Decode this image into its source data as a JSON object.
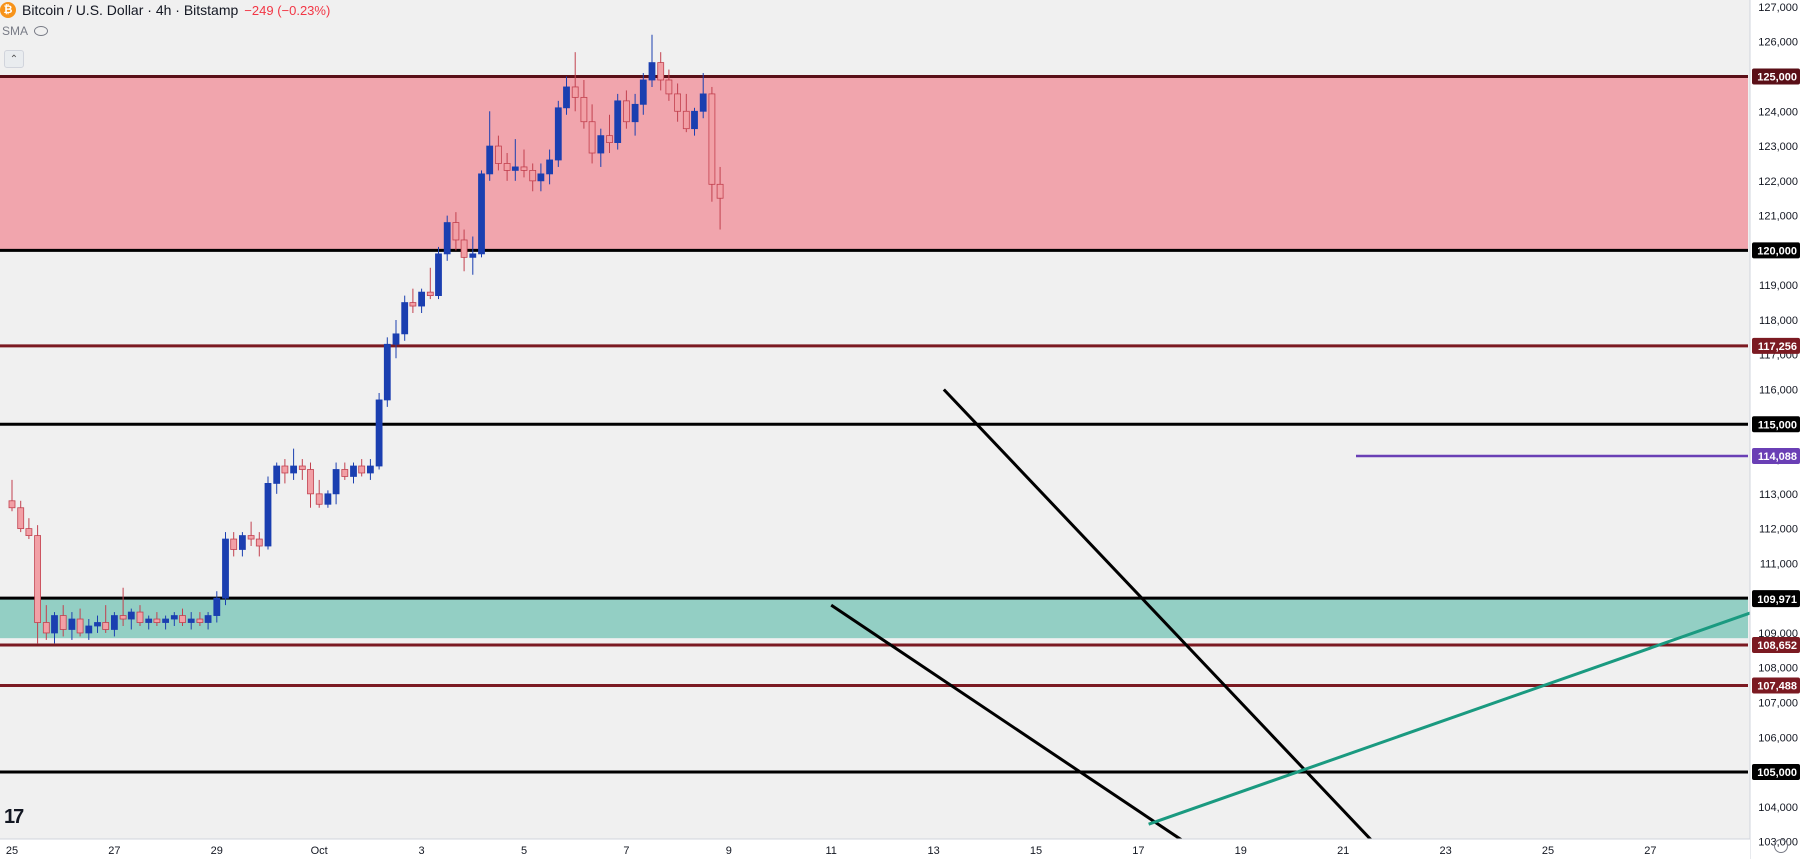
{
  "header": {
    "symbol": "Bitcoin / U.S. Dollar · 4h · Bitstamp",
    "change": "−249 (−0.23%)",
    "coin_glyph": "₿",
    "indicator": "SMA"
  },
  "colors": {
    "up": "#1b3fb0",
    "down": "#f2a0a6",
    "down_border": "#c2414f",
    "resistance_zone": "#f1a5ad",
    "support_zone": "#93cfc4",
    "key_level": "#000000",
    "minor_level": "#7b1a22",
    "pivot_line": "#6a3fb5",
    "trendline": "#1a9a80"
  },
  "chart_data": {
    "type": "candlestick",
    "title": "Bitcoin / U.S. Dollar · 4h · Bitstamp",
    "xlabel": "",
    "ylabel": "",
    "ylim": [
      102500,
      127200
    ],
    "y_ticks": [
      103000,
      104000,
      105000,
      106000,
      107000,
      108000,
      109000,
      110000,
      111000,
      112000,
      113000,
      114000,
      115000,
      116000,
      117000,
      118000,
      119000,
      120000,
      121000,
      122000,
      123000,
      124000,
      125000,
      126000,
      127000
    ],
    "x_ticks": [
      {
        "label": "25",
        "day": 25
      },
      {
        "label": "27",
        "day": 27
      },
      {
        "label": "29",
        "day": 29
      },
      {
        "label": "Oct",
        "day": 31
      },
      {
        "label": "3",
        "day": 33
      },
      {
        "label": "5",
        "day": 35
      },
      {
        "label": "7",
        "day": 37
      },
      {
        "label": "9",
        "day": 39
      },
      {
        "label": "11",
        "day": 41
      },
      {
        "label": "13",
        "day": 43
      },
      {
        "label": "15",
        "day": 45
      },
      {
        "label": "17",
        "day": 47
      },
      {
        "label": "19",
        "day": 49
      },
      {
        "label": "21",
        "day": 51
      },
      {
        "label": "23",
        "day": 53
      },
      {
        "label": "25",
        "day": 55
      },
      {
        "label": "27",
        "day": 57
      }
    ],
    "grid": false,
    "zones": [
      {
        "from": 120000,
        "to": 125000,
        "color": "#f1a5ad"
      },
      {
        "from": 108850,
        "to": 110000,
        "color": "#93cfc4"
      }
    ],
    "levels": [
      {
        "price": 125000,
        "label": "125,000",
        "color": "#5a0f17"
      },
      {
        "price": 120000,
        "label": "120,000",
        "color": "#000000"
      },
      {
        "price": 117256,
        "label": "117,256",
        "color": "#7b1a22"
      },
      {
        "price": 115000,
        "label": "115,000",
        "color": "#000000"
      },
      {
        "price": 110000,
        "label": "110,000",
        "color": "#000000"
      },
      {
        "price": 108652,
        "label": "108,652",
        "color": "#7b1a22"
      },
      {
        "price": 107488,
        "label": "107,488",
        "color": "#7b1a22"
      },
      {
        "price": 105000,
        "label": "105,000",
        "color": "#000000"
      }
    ],
    "pivot": {
      "price": 114088,
      "label": "114,088",
      "from_day": 51.25
    },
    "current_price": {
      "price": 109971,
      "label": "109,971"
    },
    "trendlines": [
      {
        "from": [
          41.0,
          109800
        ],
        "to": [
          48.4,
          102500
        ],
        "color": "#000000"
      },
      {
        "from": [
          43.2,
          116000
        ],
        "to": [
          51.9,
          102500
        ],
        "color": "#000000"
      },
      {
        "from": [
          47.2,
          103500
        ],
        "to": [
          59.0,
          109600
        ],
        "color": "#1a9a80"
      }
    ],
    "series": [
      {
        "name": "BTCUSD",
        "ohlc": [
          [
            25.0,
            112800,
            113400,
            112500,
            112600
          ],
          [
            25.17,
            112600,
            112800,
            111900,
            112000
          ],
          [
            25.33,
            112000,
            112300,
            111700,
            111800
          ],
          [
            25.5,
            111800,
            112100,
            108700,
            109300
          ],
          [
            25.67,
            109300,
            109800,
            108800,
            109000
          ],
          [
            25.83,
            109000,
            109600,
            108700,
            109500
          ],
          [
            26.0,
            109500,
            109800,
            108900,
            109100
          ],
          [
            26.17,
            109100,
            109600,
            108800,
            109400
          ],
          [
            26.33,
            109400,
            109700,
            108900,
            109000
          ],
          [
            26.5,
            109000,
            109400,
            108800,
            109200
          ],
          [
            26.67,
            109200,
            109500,
            109000,
            109300
          ],
          [
            26.83,
            109300,
            109800,
            109000,
            109100
          ],
          [
            27.0,
            109100,
            109600,
            108900,
            109500
          ],
          [
            27.17,
            109500,
            110300,
            109200,
            109400
          ],
          [
            27.33,
            109400,
            109700,
            109100,
            109600
          ],
          [
            27.5,
            109600,
            109800,
            109200,
            109300
          ],
          [
            27.67,
            109300,
            109500,
            109100,
            109400
          ],
          [
            27.83,
            109400,
            109600,
            109200,
            109300
          ],
          [
            28.0,
            109300,
            109500,
            109100,
            109400
          ],
          [
            28.17,
            109400,
            109600,
            109200,
            109500
          ],
          [
            28.33,
            109500,
            109700,
            109200,
            109300
          ],
          [
            28.5,
            109300,
            109600,
            109100,
            109400
          ],
          [
            28.67,
            109400,
            109600,
            109200,
            109300
          ],
          [
            28.83,
            109300,
            109600,
            109100,
            109500
          ],
          [
            29.0,
            109500,
            110200,
            109300,
            110000
          ],
          [
            29.17,
            110000,
            111900,
            109800,
            111700
          ],
          [
            29.33,
            111700,
            111900,
            111200,
            111400
          ],
          [
            29.5,
            111400,
            111900,
            111200,
            111800
          ],
          [
            29.67,
            111800,
            112200,
            111500,
            111700
          ],
          [
            29.83,
            111700,
            111900,
            111200,
            111500
          ],
          [
            30.0,
            111500,
            113500,
            111400,
            113300
          ],
          [
            30.17,
            113300,
            113900,
            113000,
            113800
          ],
          [
            30.33,
            113800,
            114000,
            113300,
            113600
          ],
          [
            30.5,
            113600,
            114300,
            113400,
            113800
          ],
          [
            30.67,
            113800,
            114000,
            113400,
            113700
          ],
          [
            30.83,
            113700,
            113900,
            112600,
            113000
          ],
          [
            31.0,
            113000,
            113400,
            112600,
            112700
          ],
          [
            31.17,
            112700,
            113100,
            112600,
            113000
          ],
          [
            31.33,
            113000,
            113900,
            112700,
            113700
          ],
          [
            31.5,
            113700,
            113900,
            113400,
            113500
          ],
          [
            31.67,
            113500,
            113900,
            113300,
            113800
          ],
          [
            31.83,
            113800,
            114000,
            113500,
            113600
          ],
          [
            32.0,
            113600,
            114000,
            113400,
            113800
          ],
          [
            32.17,
            113800,
            115900,
            113700,
            115700
          ],
          [
            32.33,
            115700,
            117500,
            115500,
            117300
          ],
          [
            32.5,
            117300,
            118000,
            116900,
            117600
          ],
          [
            32.67,
            117600,
            118700,
            117400,
            118500
          ],
          [
            32.83,
            118500,
            118900,
            118200,
            118400
          ],
          [
            33.0,
            118400,
            118900,
            118200,
            118800
          ],
          [
            33.17,
            118800,
            119500,
            118600,
            118700
          ],
          [
            33.33,
            118700,
            120100,
            118600,
            119900
          ],
          [
            33.5,
            119900,
            121000,
            119700,
            120800
          ],
          [
            33.67,
            120800,
            121100,
            120000,
            120300
          ],
          [
            33.83,
            120300,
            120600,
            119400,
            119800
          ],
          [
            34.0,
            119800,
            120400,
            119300,
            119900
          ],
          [
            34.17,
            119900,
            122300,
            119800,
            122200
          ],
          [
            34.33,
            122200,
            124000,
            122000,
            123000
          ],
          [
            34.5,
            123000,
            123300,
            122300,
            122500
          ],
          [
            34.67,
            122500,
            122800,
            122000,
            122300
          ],
          [
            34.83,
            122300,
            123200,
            122000,
            122400
          ],
          [
            35.0,
            122400,
            122900,
            122100,
            122300
          ],
          [
            35.17,
            122300,
            122500,
            121700,
            122000
          ],
          [
            35.33,
            122000,
            122500,
            121700,
            122200
          ],
          [
            35.5,
            122200,
            122900,
            121900,
            122600
          ],
          [
            35.67,
            122600,
            124300,
            122400,
            124100
          ],
          [
            35.83,
            124100,
            125000,
            123900,
            124700
          ],
          [
            36.0,
            124700,
            125700,
            124000,
            124400
          ],
          [
            36.17,
            124400,
            124900,
            123500,
            123700
          ],
          [
            36.33,
            123700,
            124200,
            122500,
            122800
          ],
          [
            36.5,
            122800,
            123500,
            122400,
            123300
          ],
          [
            36.67,
            123300,
            123900,
            122800,
            123100
          ],
          [
            36.83,
            123100,
            124500,
            122900,
            124300
          ],
          [
            37.0,
            124300,
            124600,
            123500,
            123700
          ],
          [
            37.17,
            123700,
            124500,
            123300,
            124200
          ],
          [
            37.33,
            124200,
            125100,
            123900,
            124900
          ],
          [
            37.5,
            124900,
            126200,
            124700,
            125400
          ],
          [
            37.67,
            125400,
            125700,
            124600,
            124900
          ],
          [
            37.83,
            124900,
            125200,
            124300,
            124500
          ],
          [
            38.0,
            124500,
            124800,
            123700,
            124000
          ],
          [
            38.17,
            124000,
            124500,
            123400,
            123500
          ],
          [
            38.33,
            123500,
            124100,
            123300,
            124000
          ],
          [
            38.5,
            124000,
            125100,
            123800,
            124500
          ],
          [
            38.67,
            124500,
            124700,
            121400,
            121900
          ],
          [
            38.83,
            121900,
            122400,
            120600,
            121500
          ]
        ]
      }
    ]
  }
}
